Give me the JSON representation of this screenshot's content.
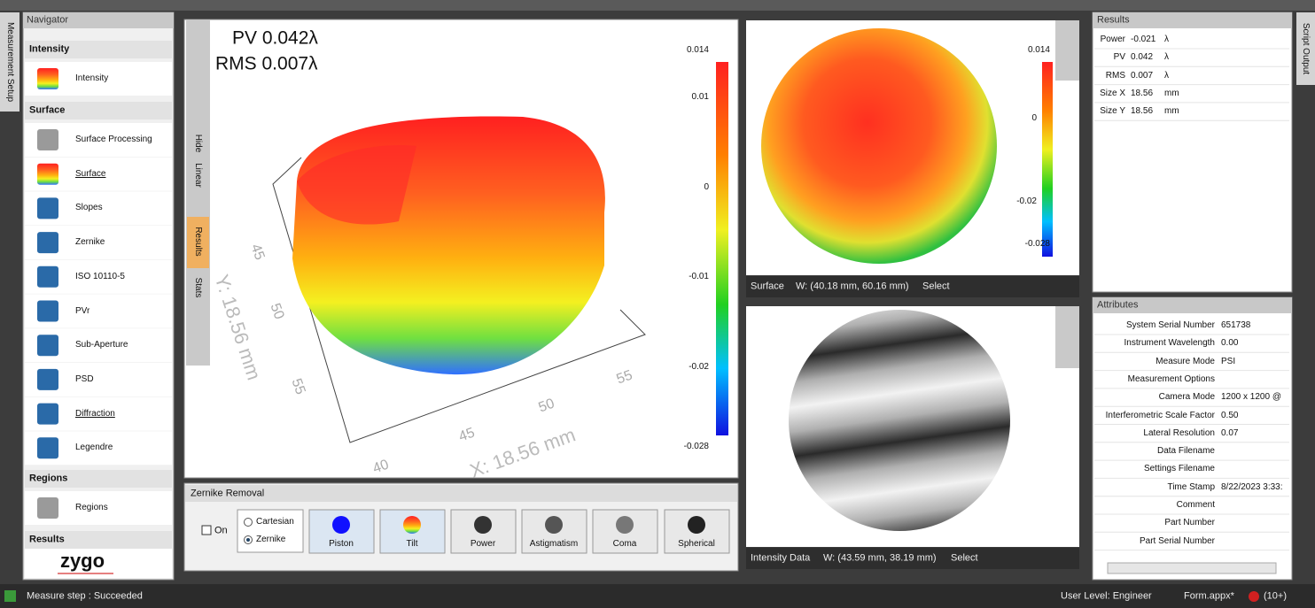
{
  "left_tab": "Measurement Setup",
  "right_tab": "Script Output",
  "navigator": {
    "title": "Navigator",
    "sections": [
      {
        "title": "Intensity",
        "items": [
          "Intensity"
        ]
      },
      {
        "title": "Surface",
        "items": [
          "Surface Processing",
          "Surface",
          "Slopes",
          "Zernike",
          "ISO 10110-5",
          "PVr",
          "Sub-Aperture",
          "PSD",
          "Diffraction",
          "Legendre"
        ]
      },
      {
        "title": "Regions",
        "items": [
          "Regions"
        ]
      },
      {
        "title": "Results"
      }
    ],
    "logo": "zygo"
  },
  "plot3d": {
    "pv": "PV 0.042λ",
    "rms": "RMS 0.007λ",
    "y_axis": "Y: 18.56 mm",
    "x_axis": "X: 18.56 mm",
    "y_ticks": [
      "45",
      "50",
      "55"
    ],
    "x_ticks": [
      "40",
      "45",
      "50",
      "55"
    ],
    "colorbar": [
      "0.014",
      "0.01",
      "0",
      "-0.01",
      "-0.02",
      "-0.028"
    ],
    "side_tabs": [
      "Hide",
      "Linear",
      "Results",
      "Stats"
    ]
  },
  "zernike_removal": {
    "title": "Zernike Removal",
    "on": "On",
    "modes": [
      "Cartesian",
      "Zernike"
    ],
    "terms": [
      "Piston",
      "Tilt",
      "Power",
      "Astigmatism",
      "Coma",
      "Spherical"
    ]
  },
  "surface_view": {
    "colorbar": [
      "0.014",
      "0",
      "-0.02",
      "-0.028"
    ],
    "status": [
      "Surface",
      "W: (40.18 mm, 60.16 mm)",
      "Select"
    ]
  },
  "intensity_view": {
    "status": [
      "Intensity Data",
      "W: (43.59 mm, 38.19 mm)",
      "Select"
    ]
  },
  "results": {
    "title": "Results",
    "rows": [
      [
        "Power",
        "-0.021",
        "λ"
      ],
      [
        "PV",
        "0.042",
        "λ"
      ],
      [
        "RMS",
        "0.007",
        "λ"
      ],
      [
        "Size X",
        "18.56",
        "mm"
      ],
      [
        "Size Y",
        "18.56",
        "mm"
      ]
    ]
  },
  "attributes": {
    "title": "Attributes",
    "rows": [
      [
        "System Serial Number",
        "651738"
      ],
      [
        "Instrument Wavelength",
        "0.00"
      ],
      [
        "Measure Mode",
        "PSI"
      ],
      [
        "Measurement Options"
      ],
      [
        "Camera Mode",
        "1200 x 1200 @"
      ],
      [
        "Interferometric Scale Factor",
        "0.50"
      ],
      [
        "Lateral Resolution",
        "0.07"
      ],
      [
        "Data Filename"
      ],
      [
        "Settings Filename"
      ],
      [
        "Time Stamp",
        "8/22/2023 3:33:"
      ],
      [
        "Comment"
      ],
      [
        "Part Number"
      ],
      [
        "Part Serial Number"
      ]
    ]
  },
  "status_bar": {
    "message": "Measure step : Succeeded",
    "user_level": "User Level: Engineer",
    "file": "Form.appx*",
    "errors": "(10+)"
  }
}
